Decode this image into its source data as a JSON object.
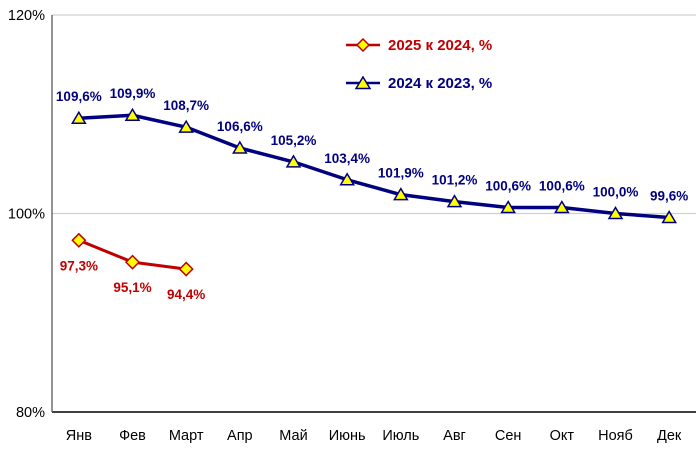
{
  "chart_data": {
    "type": "line",
    "title": "",
    "categories": [
      "Янв",
      "Фев",
      "Март",
      "Апр",
      "Май",
      "Июнь",
      "Июль",
      "Авг",
      "Сен",
      "Окт",
      "Нояб",
      "Дек"
    ],
    "y_axis": {
      "min": 80,
      "max": 120,
      "ticks": [
        {
          "value": 120,
          "label": "120%"
        },
        {
          "value": 100,
          "label": "100%"
        },
        {
          "value": 80,
          "label": "80%"
        }
      ]
    },
    "grid": "horizontal",
    "legend_position": "top-center",
    "series": [
      {
        "name": "2025 к 2024, %",
        "color": "#C00000",
        "marker": "diamond",
        "marker_fill": "#FFFF00",
        "label_position": "below",
        "values": [
          97.3,
          95.1,
          94.4
        ],
        "labels": [
          "97,3%",
          "95,1%",
          "94,4%"
        ]
      },
      {
        "name": "2024 к 2023, %",
        "color": "#000080",
        "marker": "triangle",
        "marker_fill": "#FFFF00",
        "label_position": "above",
        "values": [
          109.6,
          109.9,
          108.7,
          106.6,
          105.2,
          103.4,
          101.9,
          101.2,
          100.6,
          100.6,
          100.0,
          99.6
        ],
        "labels": [
          "109,6%",
          "109,9%",
          "108,7%",
          "106,6%",
          "105,2%",
          "103,4%",
          "101,9%",
          "101,2%",
          "100,6%",
          "100,6%",
          "100,0%",
          "99,6%"
        ]
      }
    ],
    "colors": {
      "grid_line": "#D0D0D0",
      "axis_line": "#595959",
      "bottom_axis_line": "#404040",
      "tick_label": "#000000"
    }
  }
}
